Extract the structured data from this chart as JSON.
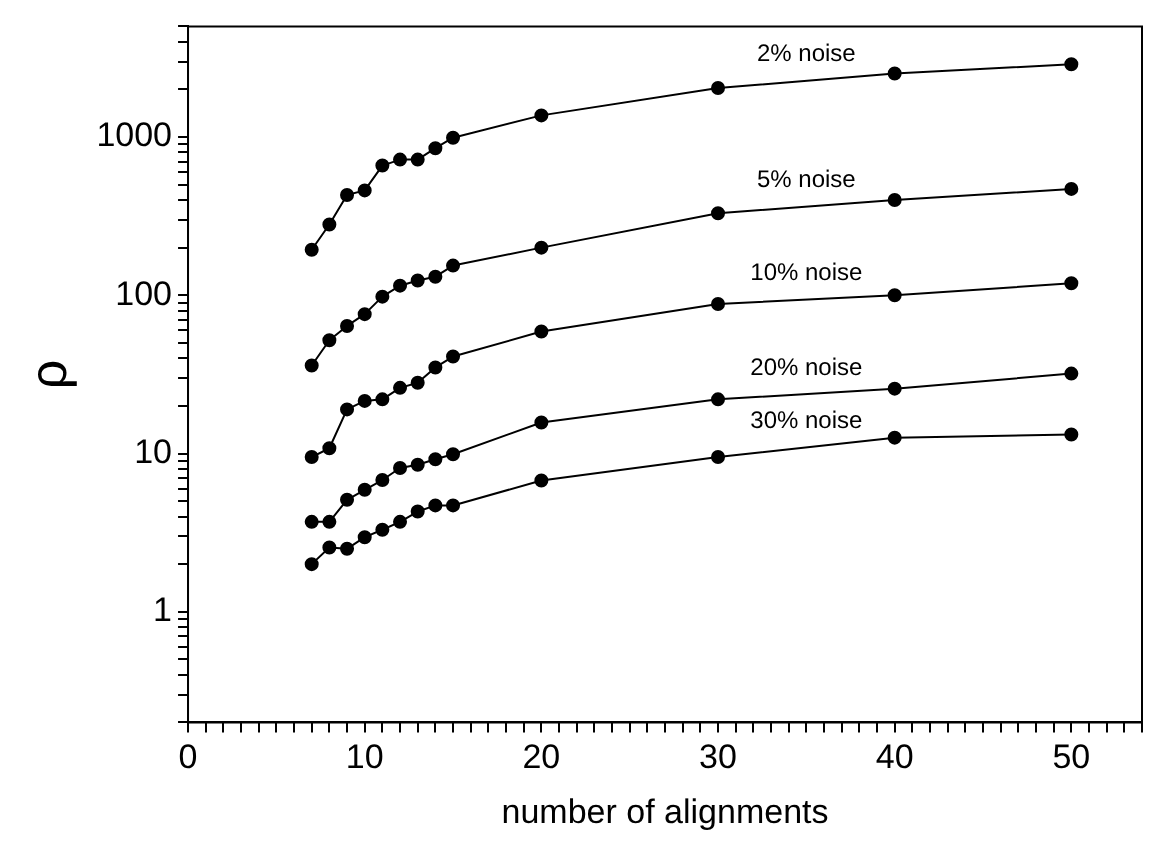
{
  "chart_data": {
    "type": "line",
    "xlabel": "number of alignments",
    "ylabel": "ρ",
    "log": "y",
    "grid": false,
    "legend": false,
    "marker": "circle",
    "line_style": "solid",
    "x": [
      7,
      8,
      9,
      10,
      11,
      12,
      13,
      14,
      15,
      20,
      30,
      40,
      50
    ],
    "xlim": [
      0,
      54
    ],
    "xticks": [
      0,
      {
        "value": 1,
        "label": null
      },
      {
        "value": 2,
        "label": null
      },
      {
        "value": 3,
        "label": null
      },
      {
        "value": 4,
        "label": null
      },
      {
        "value": 5,
        "label": null
      },
      {
        "value": 6,
        "label": null
      },
      {
        "value": 7,
        "label": null
      },
      {
        "value": 8,
        "label": null
      },
      {
        "value": 9,
        "label": null
      },
      10,
      {
        "value": 11,
        "label": null
      },
      {
        "value": 12,
        "label": null
      },
      {
        "value": 13,
        "label": null
      },
      {
        "value": 14,
        "label": null
      },
      {
        "value": 15,
        "label": null
      },
      {
        "value": 16,
        "label": null
      },
      {
        "value": 17,
        "label": null
      },
      {
        "value": 18,
        "label": null
      },
      {
        "value": 19,
        "label": null
      },
      20,
      {
        "value": 21,
        "label": null
      },
      {
        "value": 22,
        "label": null
      },
      {
        "value": 23,
        "label": null
      },
      {
        "value": 24,
        "label": null
      },
      {
        "value": 25,
        "label": null
      },
      {
        "value": 26,
        "label": null
      },
      {
        "value": 27,
        "label": null
      },
      {
        "value": 28,
        "label": null
      },
      {
        "value": 29,
        "label": null
      },
      30,
      {
        "value": 31,
        "label": null
      },
      {
        "value": 32,
        "label": null
      },
      {
        "value": 33,
        "label": null
      },
      {
        "value": 34,
        "label": null
      },
      {
        "value": 35,
        "label": null
      },
      {
        "value": 36,
        "label": null
      },
      {
        "value": 37,
        "label": null
      },
      {
        "value": 38,
        "label": null
      },
      {
        "value": 39,
        "label": null
      },
      40,
      {
        "value": 41,
        "label": null
      },
      {
        "value": 42,
        "label": null
      },
      {
        "value": 43,
        "label": null
      },
      {
        "value": 44,
        "label": null
      },
      {
        "value": 45,
        "label": null
      },
      {
        "value": 46,
        "label": null
      },
      {
        "value": 47,
        "label": null
      },
      {
        "value": 48,
        "label": null
      },
      {
        "value": 49,
        "label": null
      },
      50,
      {
        "value": 51,
        "label": null
      },
      {
        "value": 52,
        "label": null
      },
      {
        "value": 53,
        "label": null
      },
      {
        "value": 54,
        "label": null
      }
    ],
    "ylim": [
      0.2,
      5000
    ],
    "yticks": [
      {
        "value": 0.2,
        "label": null
      },
      {
        "value": 0.3,
        "label": null
      },
      {
        "value": 0.4,
        "label": null
      },
      {
        "value": 0.5,
        "label": null
      },
      {
        "value": 0.6,
        "label": null
      },
      {
        "value": 0.7,
        "label": null
      },
      {
        "value": 0.8,
        "label": null
      },
      {
        "value": 0.9,
        "label": null
      },
      1,
      {
        "value": 2,
        "label": null
      },
      {
        "value": 3,
        "label": null
      },
      {
        "value": 4,
        "label": null
      },
      {
        "value": 5,
        "label": null
      },
      {
        "value": 6,
        "label": null
      },
      {
        "value": 7,
        "label": null
      },
      {
        "value": 8,
        "label": null
      },
      {
        "value": 9,
        "label": null
      },
      10,
      {
        "value": 20,
        "label": null
      },
      {
        "value": 30,
        "label": null
      },
      {
        "value": 40,
        "label": null
      },
      {
        "value": 50,
        "label": null
      },
      {
        "value": 60,
        "label": null
      },
      {
        "value": 70,
        "label": null
      },
      {
        "value": 80,
        "label": null
      },
      {
        "value": 90,
        "label": null
      },
      100,
      {
        "value": 200,
        "label": null
      },
      {
        "value": 300,
        "label": null
      },
      {
        "value": 400,
        "label": null
      },
      {
        "value": 500,
        "label": null
      },
      {
        "value": 600,
        "label": null
      },
      {
        "value": 700,
        "label": null
      },
      {
        "value": 800,
        "label": null
      },
      {
        "value": 900,
        "label": null
      },
      1000,
      {
        "value": 2000,
        "label": null
      },
      {
        "value": 3000,
        "label": null
      },
      {
        "value": 4000,
        "label": null
      },
      {
        "value": 5000,
        "label": null
      }
    ],
    "series": [
      {
        "name": "2% noise",
        "color": "#000000",
        "values": [
          194,
          280,
          430,
          460,
          660,
          720,
          720,
          850,
          990,
          1370,
          2040,
          2520,
          2880
        ]
      },
      {
        "name": "5% noise",
        "color": "#000000",
        "values": [
          36,
          52,
          64,
          76,
          98,
          115,
          124,
          131,
          154,
          200,
          330,
          400,
          470
        ]
      },
      {
        "name": "10% noise",
        "color": "#000000",
        "values": [
          9.5,
          10.8,
          19,
          21.5,
          22,
          26,
          28,
          35,
          41,
          59,
          88,
          100,
          119
        ]
      },
      {
        "name": "20% noise",
        "color": "#000000",
        "values": [
          3.7,
          3.7,
          5.1,
          5.9,
          6.8,
          8.1,
          8.5,
          9.2,
          9.9,
          15.7,
          22,
          25.7,
          32
        ]
      },
      {
        "name": "30% noise",
        "color": "#000000",
        "values": [
          2,
          2.55,
          2.5,
          2.96,
          3.3,
          3.7,
          4.3,
          4.7,
          4.7,
          6.75,
          9.5,
          12.6,
          13.2
        ]
      }
    ]
  }
}
